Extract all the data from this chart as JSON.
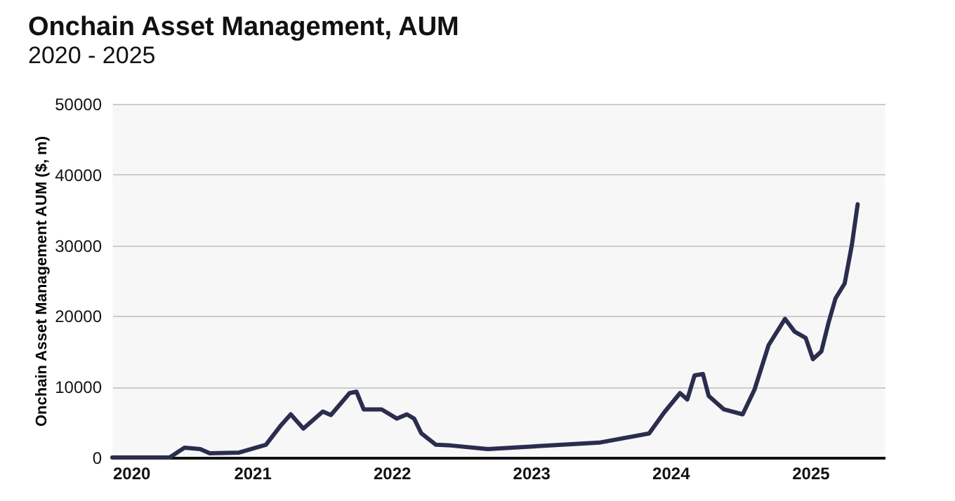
{
  "chart_data": {
    "type": "line",
    "title": "Onchain Asset Management, AUM",
    "subtitle": "2020 - 2025",
    "ylabel": "Onchain Asset Management AUM ($, m)",
    "x": [
      "2020-01-01",
      "2020-05-30",
      "2020-07-08",
      "2020-08-18",
      "2020-09-12",
      "2020-11-28",
      "2021-02-06",
      "2021-03-18",
      "2021-04-12",
      "2021-05-15",
      "2021-07-05",
      "2021-07-26",
      "2021-09-13",
      "2021-10-01",
      "2021-10-20",
      "2021-12-06",
      "2022-01-15",
      "2022-02-10",
      "2022-03-01",
      "2022-03-20",
      "2022-04-27",
      "2022-06-05",
      "2022-09-10",
      "2023-06-28",
      "2023-11-06",
      "2023-12-16",
      "2024-01-26",
      "2024-02-14",
      "2024-03-04",
      "2024-03-26",
      "2024-04-10",
      "2024-05-20",
      "2024-07-08",
      "2024-08-08",
      "2024-09-14",
      "2024-10-27",
      "2024-11-21",
      "2024-12-20",
      "2025-01-08",
      "2025-01-30",
      "2025-02-18",
      "2025-03-08",
      "2025-04-01",
      "2025-04-20",
      "2025-05-05"
    ],
    "series": [
      {
        "color": "#2b2d4f",
        "values": [
          0,
          0,
          1400,
          1200,
          600,
          700,
          1800,
          4600,
          6100,
          4100,
          6500,
          6000,
          9100,
          9300,
          6800,
          6800,
          5500,
          6100,
          5500,
          3400,
          1800,
          1700,
          1200,
          2100,
          3400,
          6400,
          9100,
          8200,
          11600,
          11800,
          8700,
          6800,
          6100,
          9600,
          15900,
          19600,
          17800,
          16900,
          13900,
          15000,
          19100,
          22500,
          24600,
          30100,
          35800
        ]
      }
    ],
    "xlim": [
      "2020-01-01",
      "2025-07-15"
    ],
    "xticks": [
      "2020",
      "2021",
      "2022",
      "2023",
      "2024",
      "2025"
    ],
    "ylim": [
      0,
      50000
    ],
    "yticks": [
      0,
      10000,
      20000,
      30000,
      40000,
      50000
    ],
    "grid": "y",
    "line_style": "solid",
    "marker": "none",
    "legend": false
  }
}
